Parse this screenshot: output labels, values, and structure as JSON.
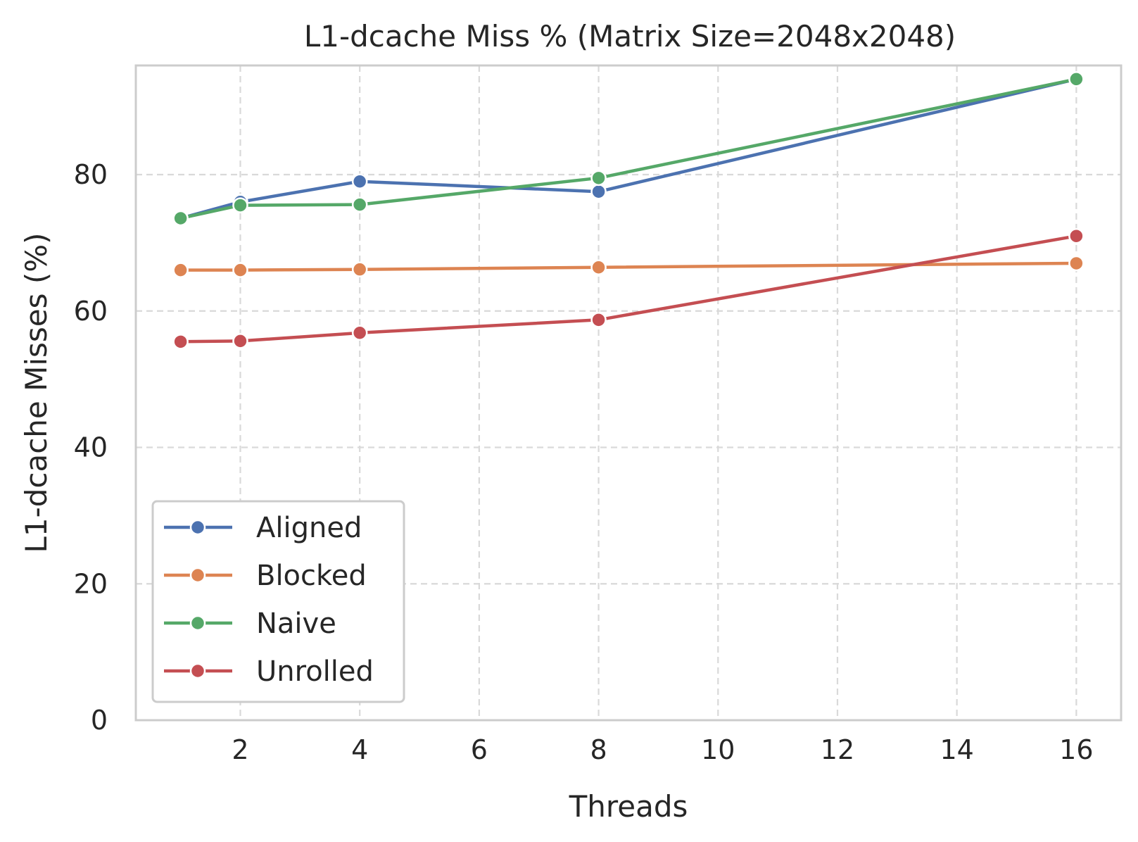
{
  "chart_data": {
    "type": "line",
    "title": "L1-dcache Miss % (Matrix Size=2048x2048)",
    "xlabel": "Threads",
    "ylabel": "L1-dcache Misses (%)",
    "xlim": [
      0.25,
      16.75
    ],
    "ylim": [
      0,
      96
    ],
    "xticks": [
      2,
      4,
      6,
      8,
      10,
      12,
      14,
      16
    ],
    "yticks": [
      0,
      20,
      40,
      60,
      80
    ],
    "grid": true,
    "legend_position": "bottom-left",
    "x": [
      1,
      2,
      4,
      8,
      16
    ],
    "series": [
      {
        "name": "Aligned",
        "color": "#4c72b0",
        "values": [
          73.6,
          76.0,
          79.0,
          77.5,
          94.0
        ]
      },
      {
        "name": "Blocked",
        "color": "#dd8452",
        "values": [
          66.0,
          66.0,
          66.1,
          66.4,
          67.0
        ]
      },
      {
        "name": "Naive",
        "color": "#55a868",
        "values": [
          73.6,
          75.5,
          75.6,
          79.5,
          94.0
        ]
      },
      {
        "name": "Unrolled",
        "color": "#c44e52",
        "values": [
          55.5,
          55.6,
          56.8,
          58.7,
          71.0
        ]
      }
    ]
  }
}
